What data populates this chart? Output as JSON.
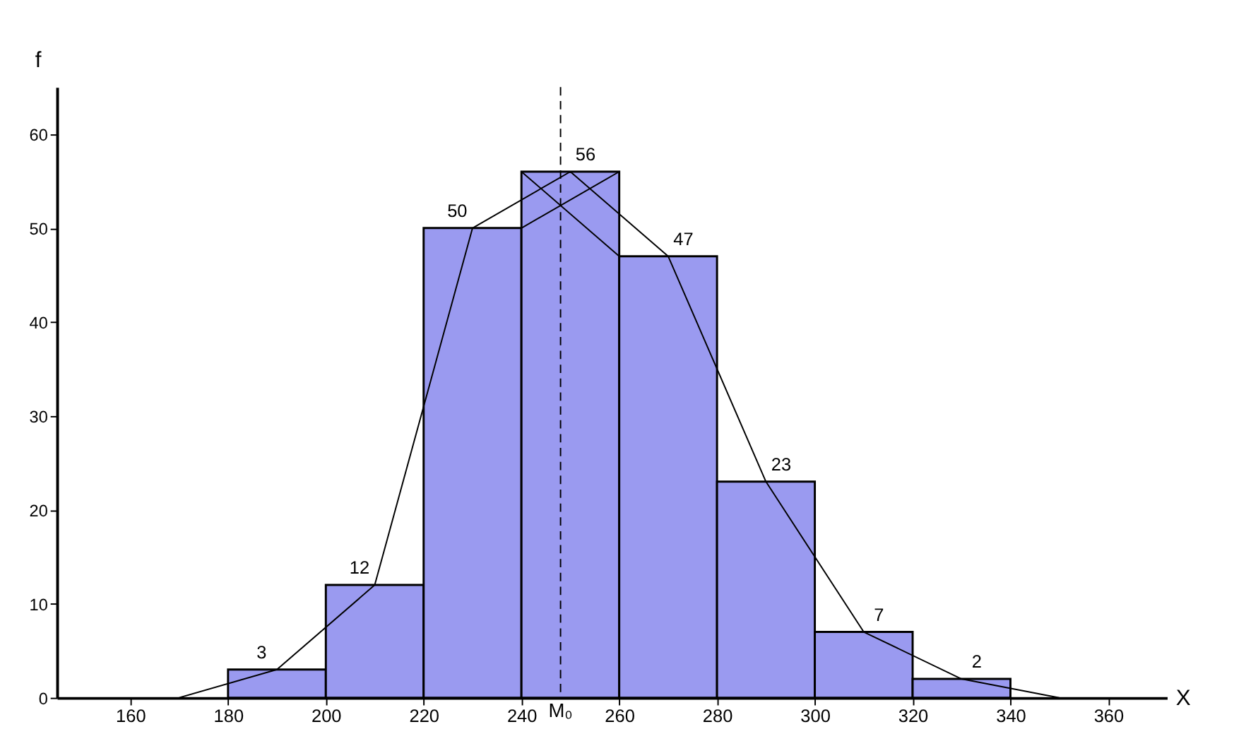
{
  "chart_data": {
    "type": "histogram",
    "xlabel": "X",
    "ylabel": "f",
    "bins": [
      180,
      200,
      220,
      240,
      260,
      280,
      300,
      320,
      340
    ],
    "values": [
      3,
      12,
      50,
      56,
      47,
      23,
      7,
      2
    ],
    "color": "#9a9af0",
    "series": [
      {
        "type": "line",
        "color": "#000000",
        "x": [
          170,
          190,
          210,
          230,
          250,
          270,
          290,
          310,
          330,
          350
        ],
        "values": [
          0,
          3,
          12,
          50,
          56,
          47,
          23,
          7,
          2,
          0
        ],
        "value_labels": [
          null,
          "3",
          "12",
          "50",
          "56",
          "47",
          "23",
          "7",
          "2",
          null
        ]
      },
      {
        "type": "line",
        "color": "#000000",
        "x": [
          240,
          260
        ],
        "values": [
          50,
          56
        ]
      },
      {
        "type": "line",
        "color": "#000000",
        "x": [
          240,
          260
        ],
        "values": [
          56,
          47
        ]
      }
    ],
    "ref_lines": [
      {
        "axis": "x",
        "value": 248,
        "label": "M₀",
        "line_style": "dashed",
        "color": "#000000"
      }
    ],
    "xlim": [
      145,
      372
    ],
    "ylim": [
      0,
      65
    ],
    "xticks": [
      160,
      180,
      200,
      220,
      240,
      260,
      280,
      300,
      320,
      340,
      360
    ],
    "yticks": [
      0,
      10,
      20,
      30,
      40,
      50,
      60
    ],
    "grid": false,
    "marker": "none"
  }
}
